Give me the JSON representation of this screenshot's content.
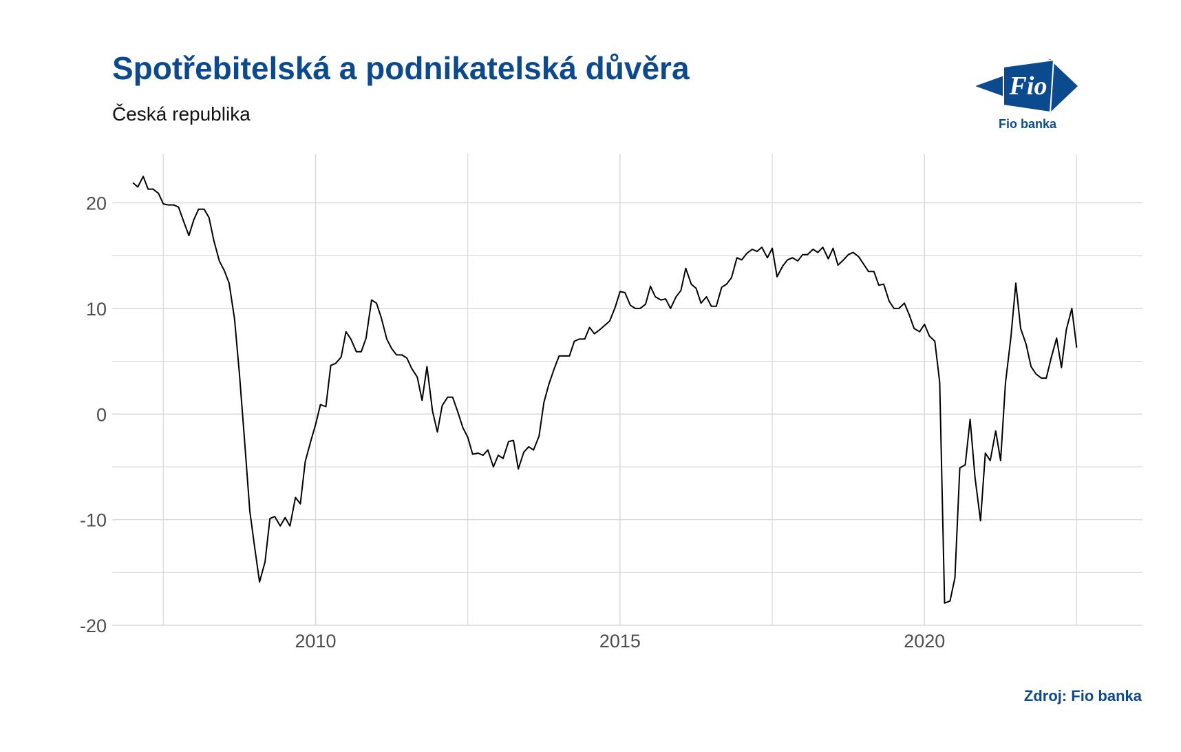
{
  "header": {
    "title": "Spotřebitelská a podnikatelská důvěra",
    "subtitle": "Česká republika"
  },
  "logo": {
    "mark_text": "Fio",
    "caption": "Fio banka",
    "icon": "fio-banka-logo",
    "color": "#0b4a8f"
  },
  "source": "Zdroj: Fio banka",
  "colors": {
    "accent": "#0b4a8f",
    "line": "#000000",
    "grid": "#d9d9d9"
  },
  "chart_data": {
    "type": "line",
    "title": "Spotřebitelská a podnikatelská důvěra",
    "subtitle": "Česká republika",
    "xlabel": "",
    "ylabel": "",
    "xlim": [
      2006.66,
      2023.58
    ],
    "ylim": [
      -20,
      24.6
    ],
    "x_ticks": [
      2010,
      2015,
      2020
    ],
    "x_tick_labels": [
      "2010",
      "2015",
      "2020"
    ],
    "y_ticks": [
      -20,
      -10,
      0,
      10,
      20
    ],
    "y_tick_labels": [
      "-20",
      "-10",
      "0",
      "10",
      "20"
    ],
    "grid": true,
    "legend": "none",
    "series": [
      {
        "points": [
          [
            2007.0,
            21.9
          ],
          [
            2007.08,
            21.5
          ],
          [
            2007.17,
            22.5
          ],
          [
            2007.25,
            21.3
          ],
          [
            2007.33,
            21.3
          ],
          [
            2007.42,
            20.9
          ],
          [
            2007.5,
            19.9
          ],
          [
            2007.58,
            19.8
          ],
          [
            2007.67,
            19.8
          ],
          [
            2007.75,
            19.6
          ],
          [
            2007.83,
            18.3
          ],
          [
            2007.92,
            16.9
          ],
          [
            2008.0,
            18.4
          ],
          [
            2008.08,
            19.4
          ],
          [
            2008.17,
            19.4
          ],
          [
            2008.25,
            18.6
          ],
          [
            2008.33,
            16.4
          ],
          [
            2008.42,
            14.5
          ],
          [
            2008.5,
            13.6
          ],
          [
            2008.58,
            12.4
          ],
          [
            2008.67,
            9.0
          ],
          [
            2008.75,
            3.8
          ],
          [
            2008.83,
            -2.2
          ],
          [
            2008.92,
            -9.2
          ],
          [
            2009.0,
            -12.6
          ],
          [
            2009.08,
            -15.9
          ],
          [
            2009.17,
            -14.0
          ],
          [
            2009.25,
            -9.9
          ],
          [
            2009.33,
            -9.7
          ],
          [
            2009.42,
            -10.6
          ],
          [
            2009.5,
            -9.8
          ],
          [
            2009.58,
            -10.6
          ],
          [
            2009.67,
            -7.9
          ],
          [
            2009.75,
            -8.5
          ],
          [
            2009.83,
            -4.5
          ],
          [
            2009.92,
            -2.6
          ],
          [
            2010.0,
            -1.0
          ],
          [
            2010.08,
            0.9
          ],
          [
            2010.17,
            0.7
          ],
          [
            2010.25,
            4.6
          ],
          [
            2010.33,
            4.8
          ],
          [
            2010.42,
            5.4
          ],
          [
            2010.5,
            7.8
          ],
          [
            2010.58,
            7.1
          ],
          [
            2010.67,
            5.9
          ],
          [
            2010.75,
            5.9
          ],
          [
            2010.83,
            7.2
          ],
          [
            2010.92,
            10.8
          ],
          [
            2011.0,
            10.5
          ],
          [
            2011.08,
            9.1
          ],
          [
            2011.17,
            7.1
          ],
          [
            2011.25,
            6.2
          ],
          [
            2011.33,
            5.6
          ],
          [
            2011.42,
            5.6
          ],
          [
            2011.5,
            5.3
          ],
          [
            2011.58,
            4.3
          ],
          [
            2011.67,
            3.5
          ],
          [
            2011.75,
            1.3
          ],
          [
            2011.83,
            4.5
          ],
          [
            2011.92,
            0.3
          ],
          [
            2012.0,
            -1.7
          ],
          [
            2012.08,
            0.8
          ],
          [
            2012.17,
            1.6
          ],
          [
            2012.25,
            1.6
          ],
          [
            2012.33,
            0.3
          ],
          [
            2012.42,
            -1.3
          ],
          [
            2012.5,
            -2.2
          ],
          [
            2012.58,
            -3.8
          ],
          [
            2012.67,
            -3.7
          ],
          [
            2012.75,
            -3.9
          ],
          [
            2012.83,
            -3.4
          ],
          [
            2012.92,
            -5.0
          ],
          [
            2013.0,
            -3.9
          ],
          [
            2013.08,
            -4.2
          ],
          [
            2013.17,
            -2.6
          ],
          [
            2013.25,
            -2.5
          ],
          [
            2013.33,
            -5.2
          ],
          [
            2013.42,
            -3.6
          ],
          [
            2013.5,
            -3.1
          ],
          [
            2013.58,
            -3.4
          ],
          [
            2013.67,
            -2.1
          ],
          [
            2013.75,
            1.1
          ],
          [
            2013.83,
            2.8
          ],
          [
            2013.92,
            4.3
          ],
          [
            2014.0,
            5.5
          ],
          [
            2014.08,
            5.5
          ],
          [
            2014.17,
            5.5
          ],
          [
            2014.25,
            6.9
          ],
          [
            2014.33,
            7.1
          ],
          [
            2014.42,
            7.1
          ],
          [
            2014.5,
            8.2
          ],
          [
            2014.58,
            7.6
          ],
          [
            2014.67,
            8.0
          ],
          [
            2014.75,
            8.4
          ],
          [
            2014.83,
            8.8
          ],
          [
            2014.92,
            10.1
          ],
          [
            2015.0,
            11.6
          ],
          [
            2015.08,
            11.5
          ],
          [
            2015.17,
            10.3
          ],
          [
            2015.25,
            10.0
          ],
          [
            2015.33,
            10.0
          ],
          [
            2015.42,
            10.4
          ],
          [
            2015.5,
            12.1
          ],
          [
            2015.58,
            11.1
          ],
          [
            2015.67,
            10.8
          ],
          [
            2015.75,
            10.9
          ],
          [
            2015.83,
            10.0
          ],
          [
            2015.92,
            11.1
          ],
          [
            2016.0,
            11.7
          ],
          [
            2016.08,
            13.8
          ],
          [
            2016.17,
            12.3
          ],
          [
            2016.25,
            11.9
          ],
          [
            2016.33,
            10.5
          ],
          [
            2016.42,
            11.1
          ],
          [
            2016.5,
            10.2
          ],
          [
            2016.58,
            10.2
          ],
          [
            2016.67,
            12.0
          ],
          [
            2016.75,
            12.3
          ],
          [
            2016.83,
            12.9
          ],
          [
            2016.92,
            14.8
          ],
          [
            2017.0,
            14.6
          ],
          [
            2017.08,
            15.2
          ],
          [
            2017.17,
            15.6
          ],
          [
            2017.25,
            15.4
          ],
          [
            2017.33,
            15.8
          ],
          [
            2017.42,
            14.8
          ],
          [
            2017.5,
            15.7
          ],
          [
            2017.58,
            13.0
          ],
          [
            2017.67,
            14.0
          ],
          [
            2017.75,
            14.6
          ],
          [
            2017.83,
            14.8
          ],
          [
            2017.92,
            14.5
          ],
          [
            2018.0,
            15.1
          ],
          [
            2018.08,
            15.1
          ],
          [
            2018.17,
            15.6
          ],
          [
            2018.25,
            15.3
          ],
          [
            2018.33,
            15.8
          ],
          [
            2018.42,
            14.7
          ],
          [
            2018.5,
            15.7
          ],
          [
            2018.58,
            14.1
          ],
          [
            2018.67,
            14.6
          ],
          [
            2018.75,
            15.1
          ],
          [
            2018.83,
            15.3
          ],
          [
            2018.92,
            14.9
          ],
          [
            2019.0,
            14.2
          ],
          [
            2019.08,
            13.5
          ],
          [
            2019.17,
            13.5
          ],
          [
            2019.25,
            12.2
          ],
          [
            2019.33,
            12.3
          ],
          [
            2019.42,
            10.7
          ],
          [
            2019.5,
            10.0
          ],
          [
            2019.58,
            10.0
          ],
          [
            2019.67,
            10.5
          ],
          [
            2019.75,
            9.4
          ],
          [
            2019.83,
            8.1
          ],
          [
            2019.92,
            7.8
          ],
          [
            2020.0,
            8.5
          ],
          [
            2020.08,
            7.4
          ],
          [
            2020.17,
            6.9
          ],
          [
            2020.25,
            3.0
          ],
          [
            2020.33,
            -17.9
          ],
          [
            2020.42,
            -17.7
          ],
          [
            2020.5,
            -15.5
          ],
          [
            2020.58,
            -5.1
          ],
          [
            2020.67,
            -4.8
          ],
          [
            2020.75,
            -0.5
          ],
          [
            2020.83,
            -6.0
          ],
          [
            2020.92,
            -10.1
          ],
          [
            2021.0,
            -3.7
          ],
          [
            2021.08,
            -4.4
          ],
          [
            2021.17,
            -1.6
          ],
          [
            2021.25,
            -4.4
          ],
          [
            2021.33,
            2.9
          ],
          [
            2021.42,
            7.3
          ],
          [
            2021.5,
            12.4
          ],
          [
            2021.58,
            8.1
          ],
          [
            2021.67,
            6.6
          ],
          [
            2021.75,
            4.5
          ],
          [
            2021.83,
            3.8
          ],
          [
            2021.92,
            3.4
          ],
          [
            2022.0,
            3.4
          ],
          [
            2022.08,
            5.3
          ],
          [
            2022.17,
            7.2
          ],
          [
            2022.25,
            4.4
          ],
          [
            2022.33,
            8.0
          ],
          [
            2022.42,
            10.0
          ],
          [
            2022.5,
            6.3
          ]
        ]
      }
    ]
  }
}
